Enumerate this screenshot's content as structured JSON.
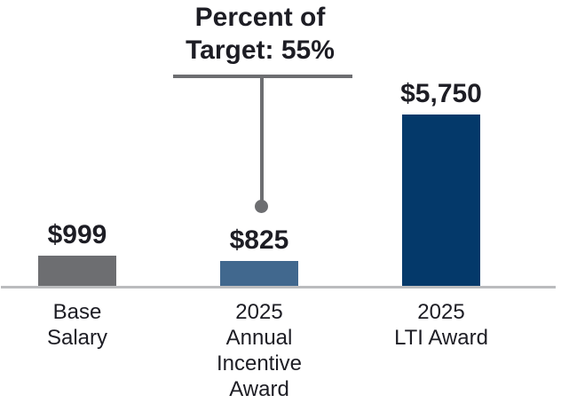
{
  "page": {
    "background": "#ffffff"
  },
  "colors": {
    "bar_gray": "#6d6e71",
    "bar_steel_blue": "#41688e",
    "bar_navy": "#04396a",
    "axis_line": "#bbbcbe",
    "connector_gray": "#6d6e71",
    "text_dark": "#1d1d24"
  },
  "chart_data": {
    "type": "bar",
    "categories": [
      "Base Salary",
      "2025 Annual Incentive Award",
      "2025 LTI Award"
    ],
    "categories_display": [
      "Base\nSalary",
      "2025\nAnnual\nIncentive\nAward",
      "2025\nLTI Award"
    ],
    "values": [
      999,
      825,
      5750
    ],
    "value_labels": [
      "$999",
      "$825",
      "$5,750"
    ],
    "bar_colors": [
      "#6d6e71",
      "#41688e",
      "#04396a"
    ],
    "ylim": [
      0,
      6000
    ],
    "grid": false,
    "legend": false,
    "xlabel": "",
    "ylabel": "",
    "annotation": {
      "text": "Percent of\nTarget: 55%",
      "percent_of_target": 55,
      "points_to": "2025 Annual Incentive Award"
    }
  }
}
